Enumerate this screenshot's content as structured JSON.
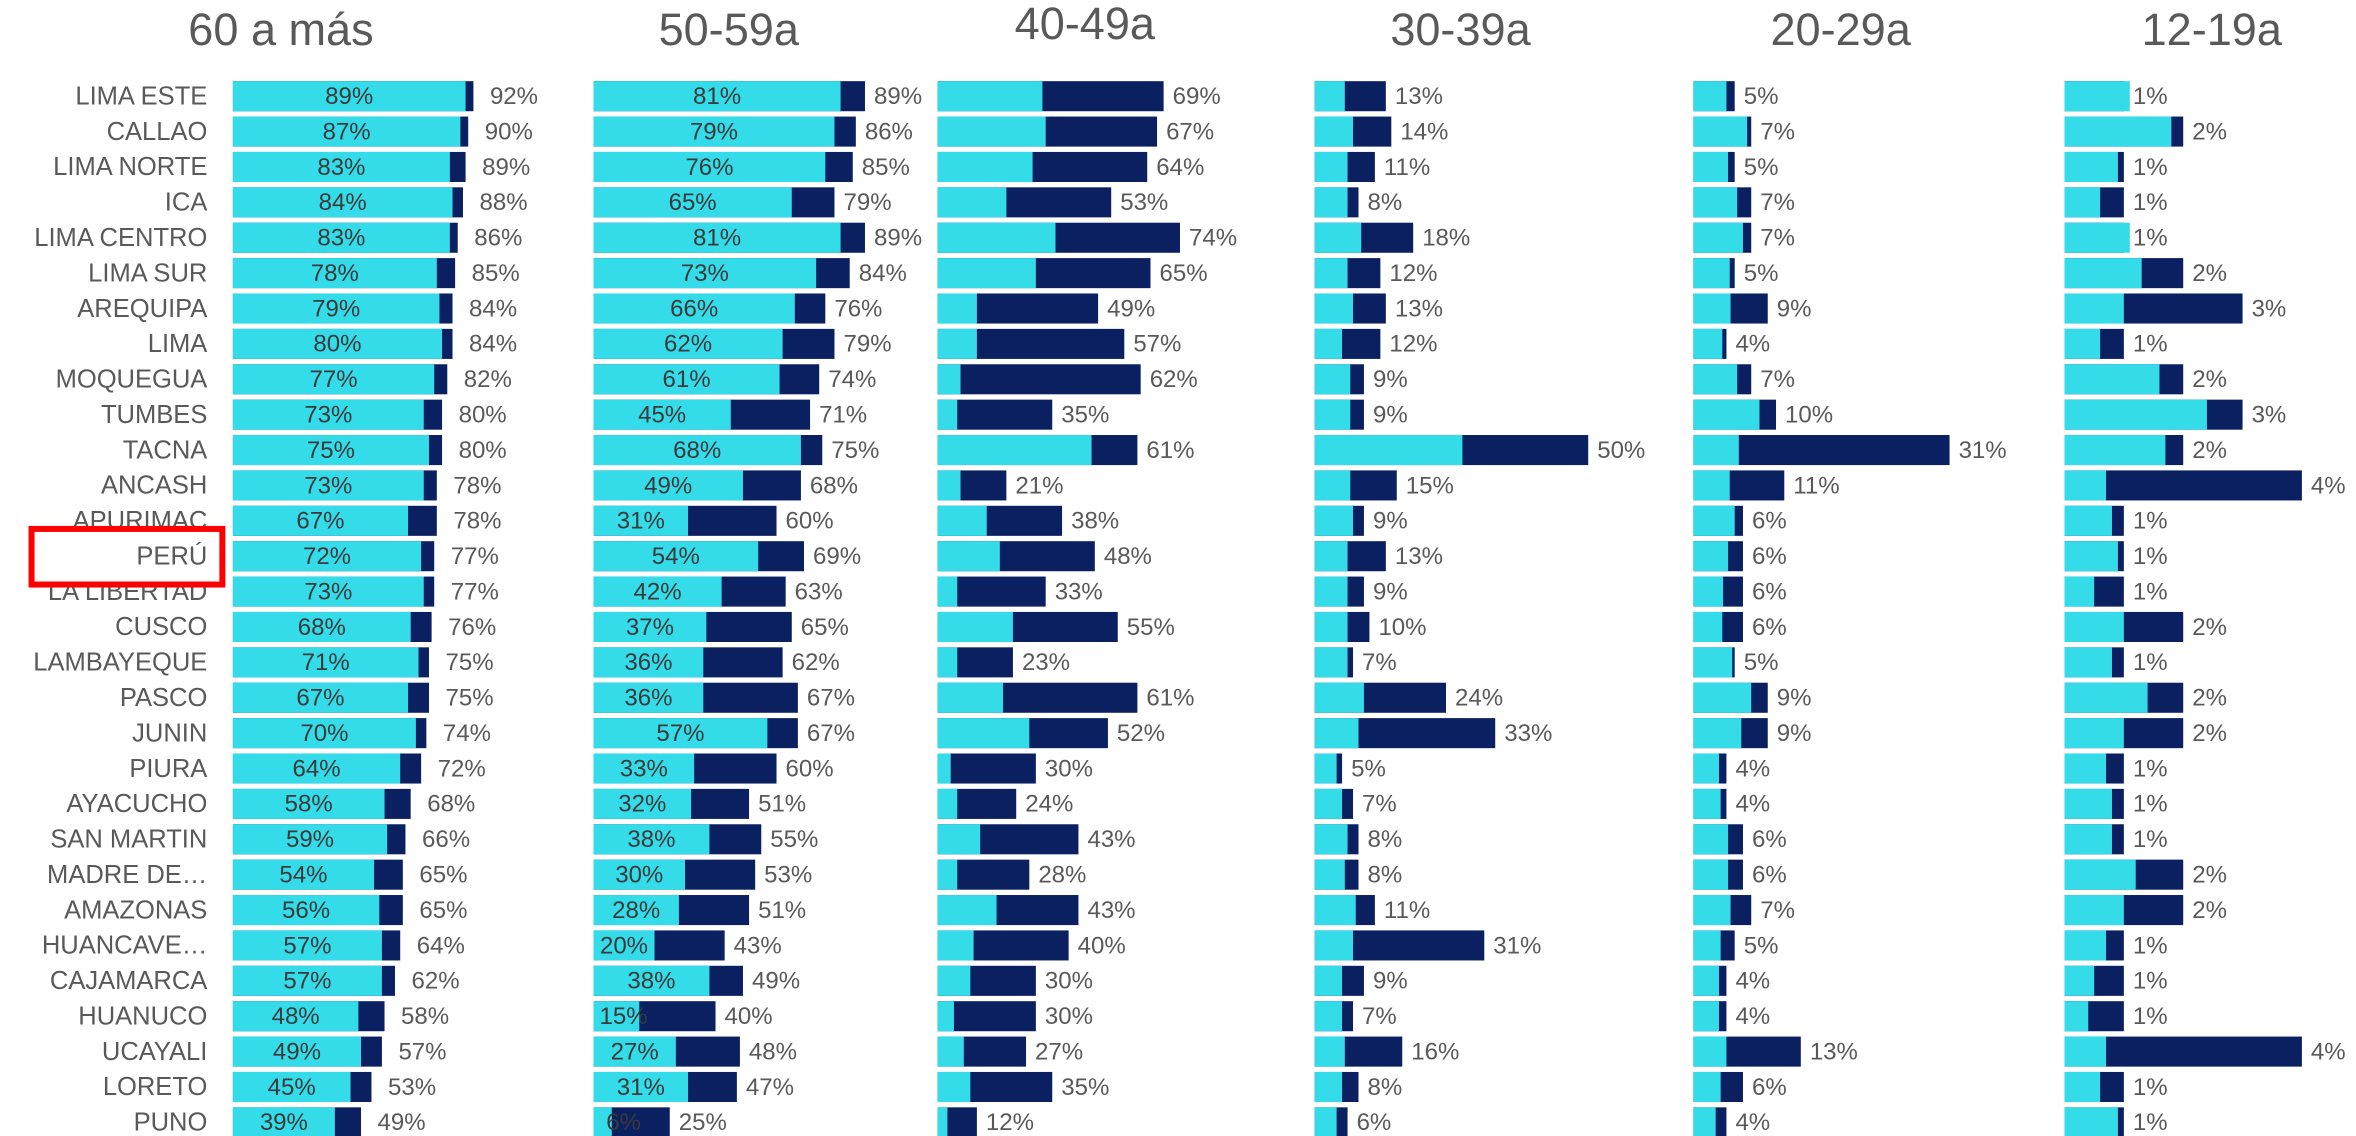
{
  "chart_data": [
    {
      "type": "bar",
      "title": "60 a más",
      "categories": [
        "LIMA ESTE",
        "CALLAO",
        "LIMA NORTE",
        "ICA",
        "LIMA CENTRO",
        "LIMA SUR",
        "AREQUIPA",
        "LIMA",
        "MOQUEGUA",
        "TUMBES",
        "TACNA",
        "ANCASH",
        "APURIMAC",
        "PERÚ",
        "LA LIBERTAD",
        "CUSCO",
        "LAMBAYEQUE",
        "PASCO",
        "JUNIN",
        "PIURA",
        "AYACUCHO",
        "SAN MARTIN",
        "MADRE DE…",
        "AMAZONAS",
        "HUANCAVE…",
        "CAJAMARCA",
        "HUANUCO",
        "UCAYALI",
        "LORETO",
        "PUNO"
      ],
      "series": [
        {
          "color": "#0a2060",
          "values": [
            92,
            90,
            89,
            88,
            86,
            85,
            84,
            84,
            82,
            80,
            80,
            78,
            78,
            77,
            77,
            76,
            75,
            75,
            74,
            72,
            68,
            66,
            65,
            65,
            64,
            62,
            58,
            57,
            53,
            49
          ],
          "value_labels": [
            "92%",
            "90%",
            "89%",
            "88%",
            "86%",
            "85%",
            "84%",
            "84%",
            "82%",
            "80%",
            "80%",
            "78%",
            "78%",
            "77%",
            "77%",
            "76%",
            "75%",
            "75%",
            "74%",
            "72%",
            "68%",
            "66%",
            "65%",
            "65%",
            "64%",
            "62%",
            "58%",
            "57%",
            "53%",
            "49%"
          ]
        },
        {
          "color": "#34dbe9",
          "values": [
            89,
            87,
            83,
            84,
            83,
            78,
            79,
            80,
            77,
            73,
            75,
            73,
            67,
            72,
            73,
            68,
            71,
            67,
            70,
            64,
            58,
            59,
            54,
            56,
            57,
            57,
            48,
            49,
            45,
            39
          ],
          "value_labels": [
            "89%",
            "87%",
            "83%",
            "84%",
            "83%",
            "78%",
            "79%",
            "80%",
            "77%",
            "73%",
            "75%",
            "73%",
            "67%",
            "72%",
            "73%",
            "68%",
            "71%",
            "67%",
            "70%",
            "64%",
            "58%",
            "59%",
            "54%",
            "56%",
            "57%",
            "57%",
            "48%",
            "49%",
            "45%",
            "39%"
          ]
        }
      ]
    },
    {
      "type": "bar",
      "title": "50-59a",
      "series": [
        {
          "color": "#0a2060",
          "values": [
            89,
            86,
            85,
            79,
            89,
            84,
            76,
            79,
            74,
            71,
            75,
            68,
            60,
            69,
            63,
            65,
            62,
            67,
            67,
            60,
            51,
            55,
            53,
            51,
            43,
            49,
            40,
            48,
            47,
            25
          ],
          "value_labels": [
            "89%",
            "86%",
            "85%",
            "79%",
            "89%",
            "84%",
            "76%",
            "79%",
            "74%",
            "71%",
            "75%",
            "68%",
            "60%",
            "69%",
            "63%",
            "65%",
            "62%",
            "67%",
            "67%",
            "60%",
            "51%",
            "55%",
            "53%",
            "51%",
            "43%",
            "49%",
            "40%",
            "48%",
            "47%",
            "25%"
          ]
        },
        {
          "color": "#34dbe9",
          "values": [
            81,
            79,
            76,
            65,
            81,
            73,
            66,
            62,
            61,
            45,
            68,
            49,
            31,
            54,
            42,
            37,
            36,
            36,
            57,
            33,
            32,
            38,
            30,
            28,
            20,
            38,
            15,
            27,
            31,
            6
          ],
          "value_labels": [
            "81%",
            "79%",
            "76%",
            "65%",
            "81%",
            "73%",
            "66%",
            "62%",
            "61%",
            "45%",
            "68%",
            "49%",
            "31%",
            "54%",
            "42%",
            "37%",
            "36%",
            "36%",
            "57%",
            "33%",
            "32%",
            "38%",
            "30%",
            "28%",
            "20%",
            "38%",
            "15%",
            "27%",
            "31%",
            "6%"
          ]
        }
      ]
    },
    {
      "type": "bar",
      "title": "40-49a",
      "series": [
        {
          "color": "#0a2060",
          "values": [
            69,
            67,
            64,
            53,
            74,
            65,
            49,
            57,
            62,
            35,
            61,
            21,
            38,
            48,
            33,
            55,
            23,
            61,
            52,
            30,
            24,
            43,
            28,
            43,
            40,
            30,
            30,
            27,
            35,
            12
          ],
          "value_labels": [
            "69%",
            "67%",
            "64%",
            "53%",
            "74%",
            "65%",
            "49%",
            "57%",
            "62%",
            "35%",
            "61%",
            "21%",
            "38%",
            "48%",
            "33%",
            "55%",
            "23%",
            "61%",
            "52%",
            "30%",
            "24%",
            "43%",
            "28%",
            "43%",
            "40%",
            "30%",
            "30%",
            "27%",
            "35%",
            "12%"
          ]
        },
        {
          "color": "#34dbe9",
          "values": [
            32,
            33,
            29,
            21,
            36,
            30,
            12,
            12,
            7,
            6,
            47,
            7,
            15,
            19,
            6,
            23,
            6,
            20,
            28,
            4,
            6,
            13,
            6,
            18,
            11,
            10,
            5,
            8,
            10,
            3
          ]
        }
      ]
    },
    {
      "type": "bar",
      "title": "30-39a",
      "series": [
        {
          "color": "#0a2060",
          "values": [
            13,
            14,
            11,
            8,
            18,
            12,
            13,
            12,
            9,
            9,
            50,
            15,
            9,
            13,
            9,
            10,
            7,
            24,
            33,
            5,
            7,
            8,
            8,
            11,
            31,
            9,
            7,
            16,
            8,
            6
          ],
          "value_labels": [
            "13%",
            "14%",
            "11%",
            "8%",
            "18%",
            "12%",
            "13%",
            "12%",
            "9%",
            "9%",
            "50%",
            "15%",
            "9%",
            "13%",
            "9%",
            "10%",
            "7%",
            "24%",
            "33%",
            "5%",
            "7%",
            "8%",
            "8%",
            "11%",
            "31%",
            "9%",
            "7%",
            "16%",
            "8%",
            "6%"
          ]
        },
        {
          "color": "#34dbe9",
          "values": [
            5.5,
            7,
            6,
            6,
            8.5,
            6,
            7,
            5,
            6.5,
            6.5,
            27,
            6.5,
            7,
            6,
            6,
            6,
            6,
            9,
            8,
            4,
            5,
            6,
            5.5,
            7.5,
            7,
            5,
            5,
            5.5,
            5,
            4
          ]
        }
      ]
    },
    {
      "type": "bar",
      "title": "20-29a",
      "series": [
        {
          "color": "#0a2060",
          "values": [
            5,
            7,
            5,
            7,
            7,
            5,
            9,
            4,
            7,
            10,
            31,
            11,
            6,
            6,
            6,
            6,
            5,
            9,
            9,
            4,
            4,
            6,
            6,
            7,
            5,
            4,
            4,
            13,
            6,
            4
          ],
          "value_labels": [
            "5%",
            "7%",
            "5%",
            "7%",
            "7%",
            "5%",
            "9%",
            "4%",
            "7%",
            "10%",
            "31%",
            "11%",
            "6%",
            "6%",
            "6%",
            "6%",
            "5%",
            "9%",
            "9%",
            "4%",
            "4%",
            "6%",
            "6%",
            "7%",
            "5%",
            "4%",
            "4%",
            "13%",
            "6%",
            "4%"
          ]
        },
        {
          "color": "#34dbe9",
          "values": [
            4,
            6.5,
            4.2,
            5.3,
            6,
            4.4,
            4.5,
            3.5,
            5.3,
            8,
            5.5,
            4.4,
            5,
            4.2,
            3.6,
            3.5,
            4.7,
            7,
            5.8,
            3.1,
            3.3,
            4.2,
            4.2,
            4.5,
            3.3,
            3.1,
            3.1,
            4,
            3.3,
            2.7
          ]
        }
      ]
    },
    {
      "type": "bar",
      "title": "12-19a",
      "series": [
        {
          "color": "#0a2060",
          "values": [
            1,
            2,
            1,
            1,
            1,
            2,
            3,
            1,
            2,
            3,
            2,
            4,
            1,
            1,
            1,
            2,
            1,
            2,
            2,
            1,
            1,
            1,
            2,
            2,
            1,
            1,
            1,
            4,
            1,
            1
          ],
          "value_labels": [
            "1%",
            "2%",
            "1%",
            "1%",
            "1%",
            "2%",
            "3%",
            "1%",
            "2%",
            "3%",
            "2%",
            "4%",
            "1%",
            "1%",
            "1%",
            "2%",
            "1%",
            "2%",
            "2%",
            "1%",
            "1%",
            "1%",
            "2%",
            "2%",
            "1%",
            "1%",
            "1%",
            "4%",
            "1%",
            "1%"
          ]
        },
        {
          "color": "#34dbe9",
          "values": [
            1.1,
            1.8,
            0.9,
            0.6,
            1.1,
            1.3,
            1,
            0.6,
            1.6,
            2.4,
            1.7,
            0.7,
            0.8,
            0.9,
            0.5,
            1,
            0.8,
            1.4,
            1,
            0.7,
            0.8,
            0.8,
            1.2,
            1,
            0.7,
            0.5,
            0.4,
            0.7,
            0.6,
            0.9
          ]
        }
      ]
    }
  ]
}
